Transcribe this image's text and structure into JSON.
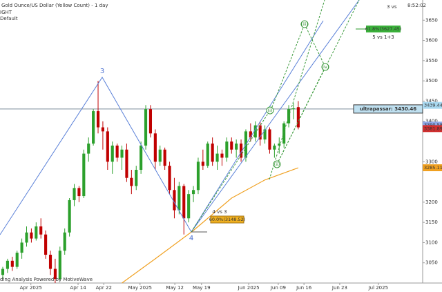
{
  "chart_data": {
    "type": "candlestick",
    "title": "Gold Ounce/US Dollar (Yellow Count) - 1 day",
    "subtitle": "IGHT",
    "note": "Default",
    "clock": "8:52:02",
    "corner": "3 vs",
    "footer": "ding Analysis Powered by MotiveWave",
    "up_color": "#2ca02c",
    "down_color": "#c00000",
    "open": [
      3020,
      3035,
      3055,
      3040,
      3075,
      3100,
      3125,
      3110,
      3140,
      3120,
      3070,
      3035,
      3010,
      3080,
      3125,
      3205,
      3235,
      3215,
      3320,
      3345,
      3425,
      3385,
      3375,
      3300,
      3340,
      3310,
      3330,
      3260,
      3240,
      3280,
      3340,
      3430,
      3370,
      3300,
      3330,
      3290,
      3230,
      3180,
      3240,
      3160,
      3220,
      3230,
      3300,
      3290,
      3345,
      3300,
      3320,
      3310,
      3350,
      3330,
      3345,
      3310,
      3375,
      3360,
      3390,
      3355,
      3380,
      3330,
      3340,
      3345,
      3395,
      3430,
      3435
    ],
    "high": [
      3040,
      3060,
      3065,
      3080,
      3110,
      3140,
      3135,
      3150,
      3160,
      3130,
      3080,
      3060,
      3090,
      3135,
      3210,
      3245,
      3240,
      3330,
      3360,
      3430,
      3500,
      3400,
      3385,
      3350,
      3345,
      3340,
      3345,
      3280,
      3290,
      3350,
      3440,
      3440,
      3380,
      3340,
      3335,
      3300,
      3260,
      3250,
      3245,
      3230,
      3240,
      3310,
      3330,
      3350,
      3360,
      3340,
      3330,
      3360,
      3360,
      3355,
      3355,
      3380,
      3395,
      3400,
      3400,
      3390,
      3385,
      3345,
      3360,
      3400,
      3440,
      3445,
      3450
    ],
    "low": [
      3010,
      3025,
      3030,
      3035,
      3060,
      3090,
      3100,
      3105,
      3110,
      3060,
      3020,
      3000,
      3005,
      3070,
      3115,
      3190,
      3200,
      3210,
      3300,
      3340,
      3370,
      3330,
      3280,
      3270,
      3300,
      3280,
      3250,
      3220,
      3230,
      3270,
      3330,
      3360,
      3280,
      3290,
      3280,
      3220,
      3160,
      3170,
      3120,
      3150,
      3200,
      3220,
      3280,
      3285,
      3290,
      3280,
      3290,
      3300,
      3320,
      3310,
      3300,
      3300,
      3350,
      3350,
      3340,
      3345,
      3320,
      3310,
      3320,
      3335,
      3385,
      3405,
      3380
    ],
    "close": [
      3035,
      3055,
      3040,
      3075,
      3100,
      3125,
      3110,
      3140,
      3120,
      3070,
      3035,
      3010,
      3080,
      3125,
      3205,
      3235,
      3215,
      3320,
      3345,
      3425,
      3385,
      3375,
      3300,
      3340,
      3310,
      3330,
      3260,
      3240,
      3280,
      3340,
      3430,
      3370,
      3300,
      3330,
      3290,
      3230,
      3180,
      3240,
      3160,
      3220,
      3230,
      3300,
      3290,
      3345,
      3300,
      3320,
      3310,
      3350,
      3330,
      3345,
      3310,
      3375,
      3360,
      3390,
      3355,
      3380,
      3330,
      3340,
      3345,
      3395,
      3430,
      3432,
      3385
    ],
    "moving_average": {
      "color": "#f0a020",
      "x": [
        25,
        32,
        40,
        48,
        55,
        62
      ],
      "values": [
        3000,
        3060,
        3130,
        3210,
        3255,
        3285
      ]
    },
    "xlim": [
      -0.58,
      88.1
    ],
    "xticks": [
      {
        "value": 5.9,
        "label": "Apr 2025"
      },
      {
        "value": 15.8,
        "label": "Apr 14"
      },
      {
        "value": 21.2,
        "label": "Apr 22"
      },
      {
        "value": 28.8,
        "label": "May 2025"
      },
      {
        "value": 36.1,
        "label": "May 12"
      },
      {
        "value": 41.7,
        "label": "May 19"
      },
      {
        "value": 51.6,
        "label": "Jun 2025"
      },
      {
        "value": 57.8,
        "label": "Jun 09"
      },
      {
        "value": 63.2,
        "label": "Jun 16"
      },
      {
        "value": 70.7,
        "label": "Jun 23"
      },
      {
        "value": 78.8,
        "label": "Jul 2025"
      }
    ],
    "ylim": [
      3000,
      3700
    ],
    "yticks": [
      3050,
      3100,
      3150,
      3200,
      3300,
      3400,
      3450,
      3500,
      3550,
      3600,
      3650
    ],
    "level": {
      "value": 3430.46,
      "label": "ultrapassar: 3430.46"
    },
    "price_tags": [
      {
        "value": 3439.44,
        "color": "#a8d8f0"
      },
      {
        "value": 3390.58,
        "color": "#8fa8e8"
      },
      {
        "value": 3381.89,
        "color": "#d03030"
      },
      {
        "value": 3285.11,
        "color": "#f0a020"
      }
    ],
    "annotations": {
      "wave_3": "3",
      "wave_4": "4",
      "w1": "(i)",
      "w2": "(ii)",
      "w3": "(iii)",
      "w4": "(iv)",
      "fib_upper": "61.8%(3627.45)",
      "fib_upper_note": "5 vs 1+3",
      "fib_lower": "60.0%(3148.52)",
      "fib_lower_note": "4 vs 3"
    }
  }
}
